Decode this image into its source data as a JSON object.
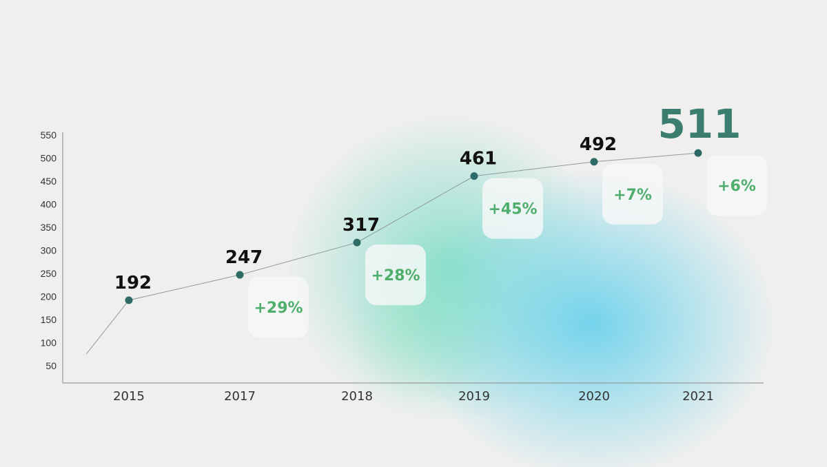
{
  "colors": {
    "background": "#efefee",
    "point": "#2f6b66",
    "highlight_value": "#3b7d6f",
    "growth_text": "#4fae6c",
    "glow_teal": "#6edabe",
    "glow_blue": "#60ceec"
  },
  "chart_data": {
    "type": "line",
    "title": "",
    "xlabel": "",
    "ylabel": "",
    "categories": [
      "2015",
      "2017",
      "2018",
      "2019",
      "2020",
      "2021"
    ],
    "series": [
      {
        "values": [
          192,
          247,
          317,
          461,
          492,
          511
        ],
        "value_labels": [
          "192",
          "247",
          "317",
          "461",
          "492",
          "511"
        ],
        "growth_labels": [
          "",
          "+29%",
          "+28%",
          "+45%",
          "+7%",
          "+6%"
        ]
      }
    ],
    "ylim": [
      25,
      575
    ],
    "yticks": [
      50,
      100,
      150,
      200,
      250,
      300,
      350,
      400,
      450,
      500,
      550
    ],
    "line_starts_at": 75,
    "grid": false,
    "highlighted_point": "2021"
  }
}
